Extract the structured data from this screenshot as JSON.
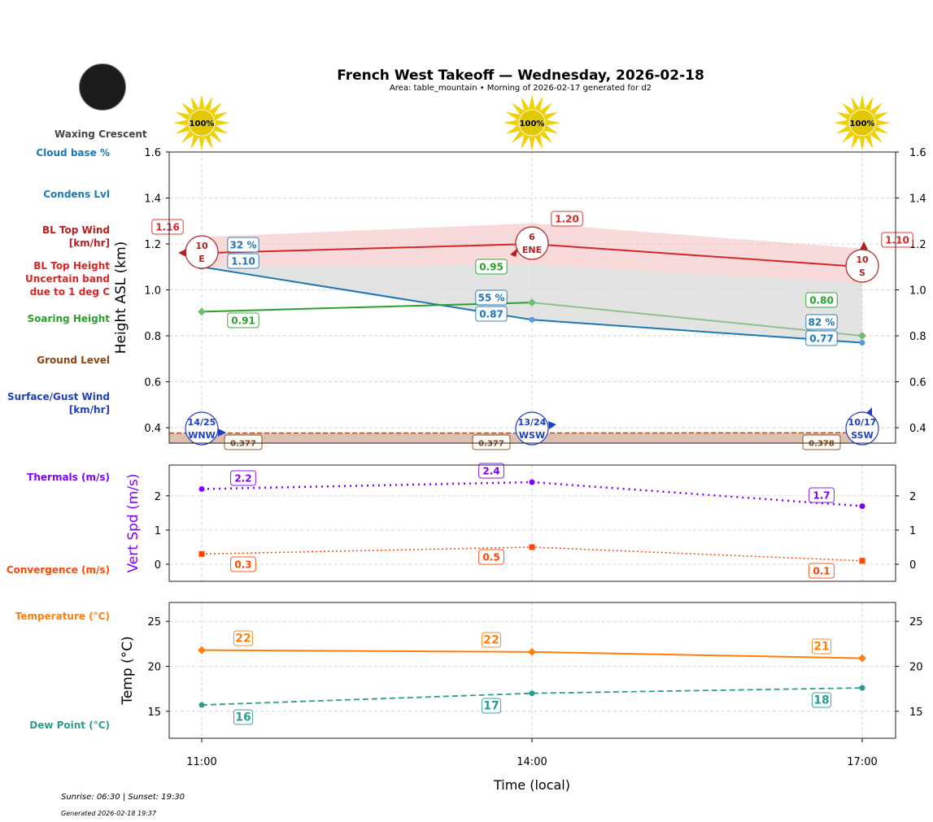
{
  "title": "French West Takeoff — Wednesday, 2026-02-18",
  "subtitle": "Area: table_mountain • Morning of 2026-02-17 generated for d2",
  "moon_phase": "Waxing Crescent",
  "footer": {
    "sun": "Sunrise: 06:30 | Sunset: 19:30",
    "generated": "Generated 2026-02-18 19:37"
  },
  "side_labels": [
    {
      "text": "Cloud base %",
      "color": "#1f77b4"
    },
    {
      "text": "Condens Lvl",
      "color": "#1f77b4"
    },
    {
      "text": "BL Top Wind\n[km/hr]",
      "color": "#b22222"
    },
    {
      "text": "BL Top Height\nUncertain band\ndue to 1 deg C",
      "color": "#d62728"
    },
    {
      "text": "Soaring Height",
      "color": "#2ca02c"
    },
    {
      "text": "Ground Level",
      "color": "#8b4513"
    },
    {
      "text": "Surface/Gust Wind\n[km/hr]",
      "color": "#1f3fbf"
    },
    {
      "text": "Thermals (m/s)",
      "color": "#8000ff"
    },
    {
      "text": "Convergence (m/s)",
      "color": "#ff4500"
    },
    {
      "text": "Temperature (°C)",
      "color": "#ff7f0e"
    },
    {
      "text": "Dew Point (°C)",
      "color": "#2a9d8f"
    }
  ],
  "chart_data": [
    {
      "type": "line",
      "ylabel": "Height ASL (km)",
      "ylim": [
        0.333,
        1.6
      ],
      "yticks": [
        "0.4",
        "0.6",
        "0.8",
        "1.0",
        "1.2",
        "1.4",
        "1.6"
      ],
      "x": [
        "11:00",
        "14:00",
        "17:00"
      ],
      "sun": [
        "100%",
        "100%",
        "100%"
      ],
      "series": {
        "bl_top": {
          "values": [
            1.16,
            1.2,
            1.1
          ],
          "labels": [
            "1.16",
            "1.20",
            "1.10"
          ],
          "band_upper": [
            1.23,
            1.29,
            1.18
          ],
          "band_lower": [
            1.1,
            1.11,
            1.03
          ],
          "color": "#d62728"
        },
        "condens": {
          "values": [
            1.1,
            0.87,
            0.77
          ],
          "labels": [
            "1.10",
            "0.87",
            "0.77"
          ],
          "cloud_pct": [
            "32 %",
            "55 %",
            "82 %"
          ],
          "color": "#1f77b4"
        },
        "soaring": {
          "values": [
            0.905,
            0.945,
            0.8
          ],
          "labels": [
            "0.91",
            "0.95",
            "0.80"
          ],
          "color": "#2ca02c"
        },
        "ground": {
          "values": [
            0.377,
            0.377,
            0.378
          ],
          "labels": [
            "0.377",
            "0.377",
            "0.378"
          ],
          "color": "#a0522d"
        },
        "bl_wind": {
          "speed": [
            "10",
            "6",
            "10"
          ],
          "dir": [
            "E",
            "ENE",
            "S"
          ],
          "color": "#b22222"
        },
        "surface_wind": {
          "speed": [
            "14/25",
            "13/24",
            "10/17"
          ],
          "dir": [
            "WNW",
            "WSW",
            "SSW"
          ],
          "color": "#1f3fbf"
        }
      }
    },
    {
      "type": "line",
      "ylabel": "Vert Spd (m/s)",
      "ylim": [
        -0.5,
        2.9
      ],
      "yticks": [
        "0",
        "1",
        "2"
      ],
      "series": {
        "thermals": {
          "values": [
            2.2,
            2.4,
            1.7
          ],
          "labels": [
            "2.2",
            "2.4",
            "1.7"
          ],
          "color": "#8000ff"
        },
        "convergence": {
          "values": [
            0.3,
            0.5,
            0.1
          ],
          "labels": [
            "0.3",
            "0.5",
            "0.1"
          ],
          "color": "#ff4500"
        }
      }
    },
    {
      "type": "line",
      "ylabel": "Temp (°C)",
      "xlabel": "Time (local)",
      "ylim": [
        12.0,
        27.1
      ],
      "yticks": [
        "15",
        "20",
        "25"
      ],
      "series": {
        "temperature": {
          "values": [
            21.8,
            21.6,
            20.9
          ],
          "labels": [
            "22",
            "22",
            "21"
          ],
          "color": "#ff7f0e"
        },
        "dewpoint": {
          "values": [
            15.7,
            17.0,
            17.6
          ],
          "labels": [
            "16",
            "17",
            "18"
          ],
          "color": "#2a9d8f"
        }
      }
    }
  ]
}
